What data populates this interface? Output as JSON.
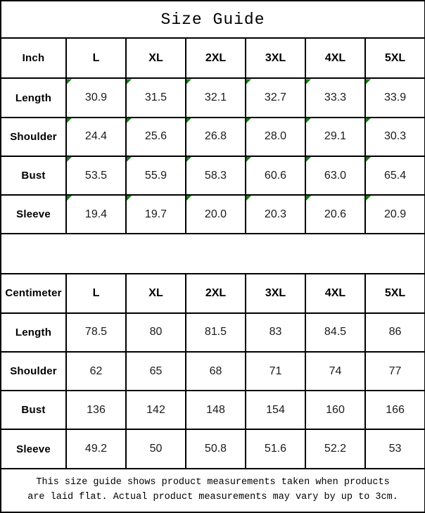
{
  "title": "Size Guide",
  "colors": {
    "background": "#ffffff",
    "border": "#000000",
    "text": "#000000",
    "triangle_green": "#108010"
  },
  "tables": [
    {
      "unit": "Inch",
      "sizes": [
        "L",
        "XL",
        "2XL",
        "3XL",
        "4XL",
        "5XL"
      ],
      "rows": [
        {
          "label": "Length",
          "values": [
            "30.9",
            "31.5",
            "32.1",
            "32.7",
            "33.3",
            "33.9"
          ]
        },
        {
          "label": "Shoulder",
          "values": [
            "24.4",
            "25.6",
            "26.8",
            "28.0",
            "29.1",
            "30.3"
          ]
        },
        {
          "label": "Bust",
          "values": [
            "53.5",
            "55.9",
            "58.3",
            "60.6",
            "63.0",
            "65.4"
          ]
        },
        {
          "label": "Sleeve",
          "values": [
            "19.4",
            "19.7",
            "20.0",
            "20.3",
            "20.6",
            "20.9"
          ]
        }
      ],
      "has_error_triangles": true
    },
    {
      "unit": "Centimeter",
      "sizes": [
        "L",
        "XL",
        "2XL",
        "3XL",
        "4XL",
        "5XL"
      ],
      "rows": [
        {
          "label": "Length",
          "values": [
            "78.5",
            "80",
            "81.5",
            "83",
            "84.5",
            "86"
          ]
        },
        {
          "label": "Shoulder",
          "values": [
            "62",
            "65",
            "68",
            "71",
            "74",
            "77"
          ]
        },
        {
          "label": "Bust",
          "values": [
            "136",
            "142",
            "148",
            "154",
            "160",
            "166"
          ]
        },
        {
          "label": "Sleeve",
          "values": [
            "49.2",
            "50",
            "50.8",
            "51.6",
            "52.2",
            "53"
          ]
        }
      ],
      "has_error_triangles": false
    }
  ],
  "footer": {
    "lines": [
      "This size guide shows product measurements taken when products",
      "are laid flat. Actual product measurements may vary by up to 3cm."
    ]
  }
}
